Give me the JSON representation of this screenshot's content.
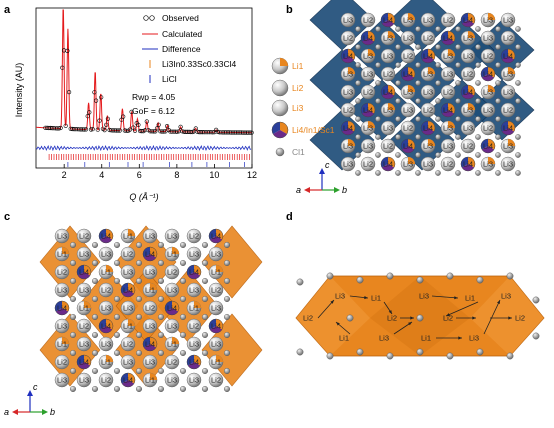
{
  "panels": {
    "a": "a",
    "b": "b",
    "c": "c",
    "d": "d"
  },
  "chart_data": {
    "type": "line",
    "xlabel": "Q (Å⁻¹)",
    "ylabel": "Intensity (AU)",
    "xlim": [
      0.5,
      12
    ],
    "xticks": [
      2,
      4,
      6,
      8,
      10,
      12
    ],
    "legend": [
      "Observed",
      "Calculated",
      "Difference",
      "Li3In0.33Sc0.33Cl4",
      "LiCl"
    ],
    "stats": [
      "Rwp = 4.05",
      "GoF = 6.12"
    ],
    "peaks": [
      {
        "q": 1.95,
        "i": 1.0
      },
      {
        "q": 2.2,
        "i": 0.82
      },
      {
        "q": 3.3,
        "i": 0.22
      },
      {
        "q": 3.65,
        "i": 0.48
      },
      {
        "q": 3.95,
        "i": 0.3
      },
      {
        "q": 4.3,
        "i": 0.12
      },
      {
        "q": 5.1,
        "i": 0.18
      },
      {
        "q": 5.6,
        "i": 0.16
      },
      {
        "q": 5.9,
        "i": 0.1
      },
      {
        "q": 6.4,
        "i": 0.08
      },
      {
        "q": 7.0,
        "i": 0.07
      },
      {
        "q": 7.5,
        "i": 0.05
      },
      {
        "q": 8.2,
        "i": 0.04
      },
      {
        "q": 9.0,
        "i": 0.03
      },
      {
        "q": 10.1,
        "i": 0.02
      }
    ]
  },
  "key_b": [
    "Li1",
    "Li2",
    "Li3",
    "Li4/In1/Sc1",
    "Cl1"
  ],
  "atom_labels": {
    "li1": "Li1",
    "li2": "Li2",
    "li3": "Li3",
    "li4": "Li4"
  },
  "axes_labels": {
    "a": "a",
    "b": "b",
    "c": "c"
  },
  "colors": {
    "blue": "#1f4e79",
    "orange": "#e8861f",
    "red": "#d62728",
    "navy": "#1f2fbf"
  }
}
